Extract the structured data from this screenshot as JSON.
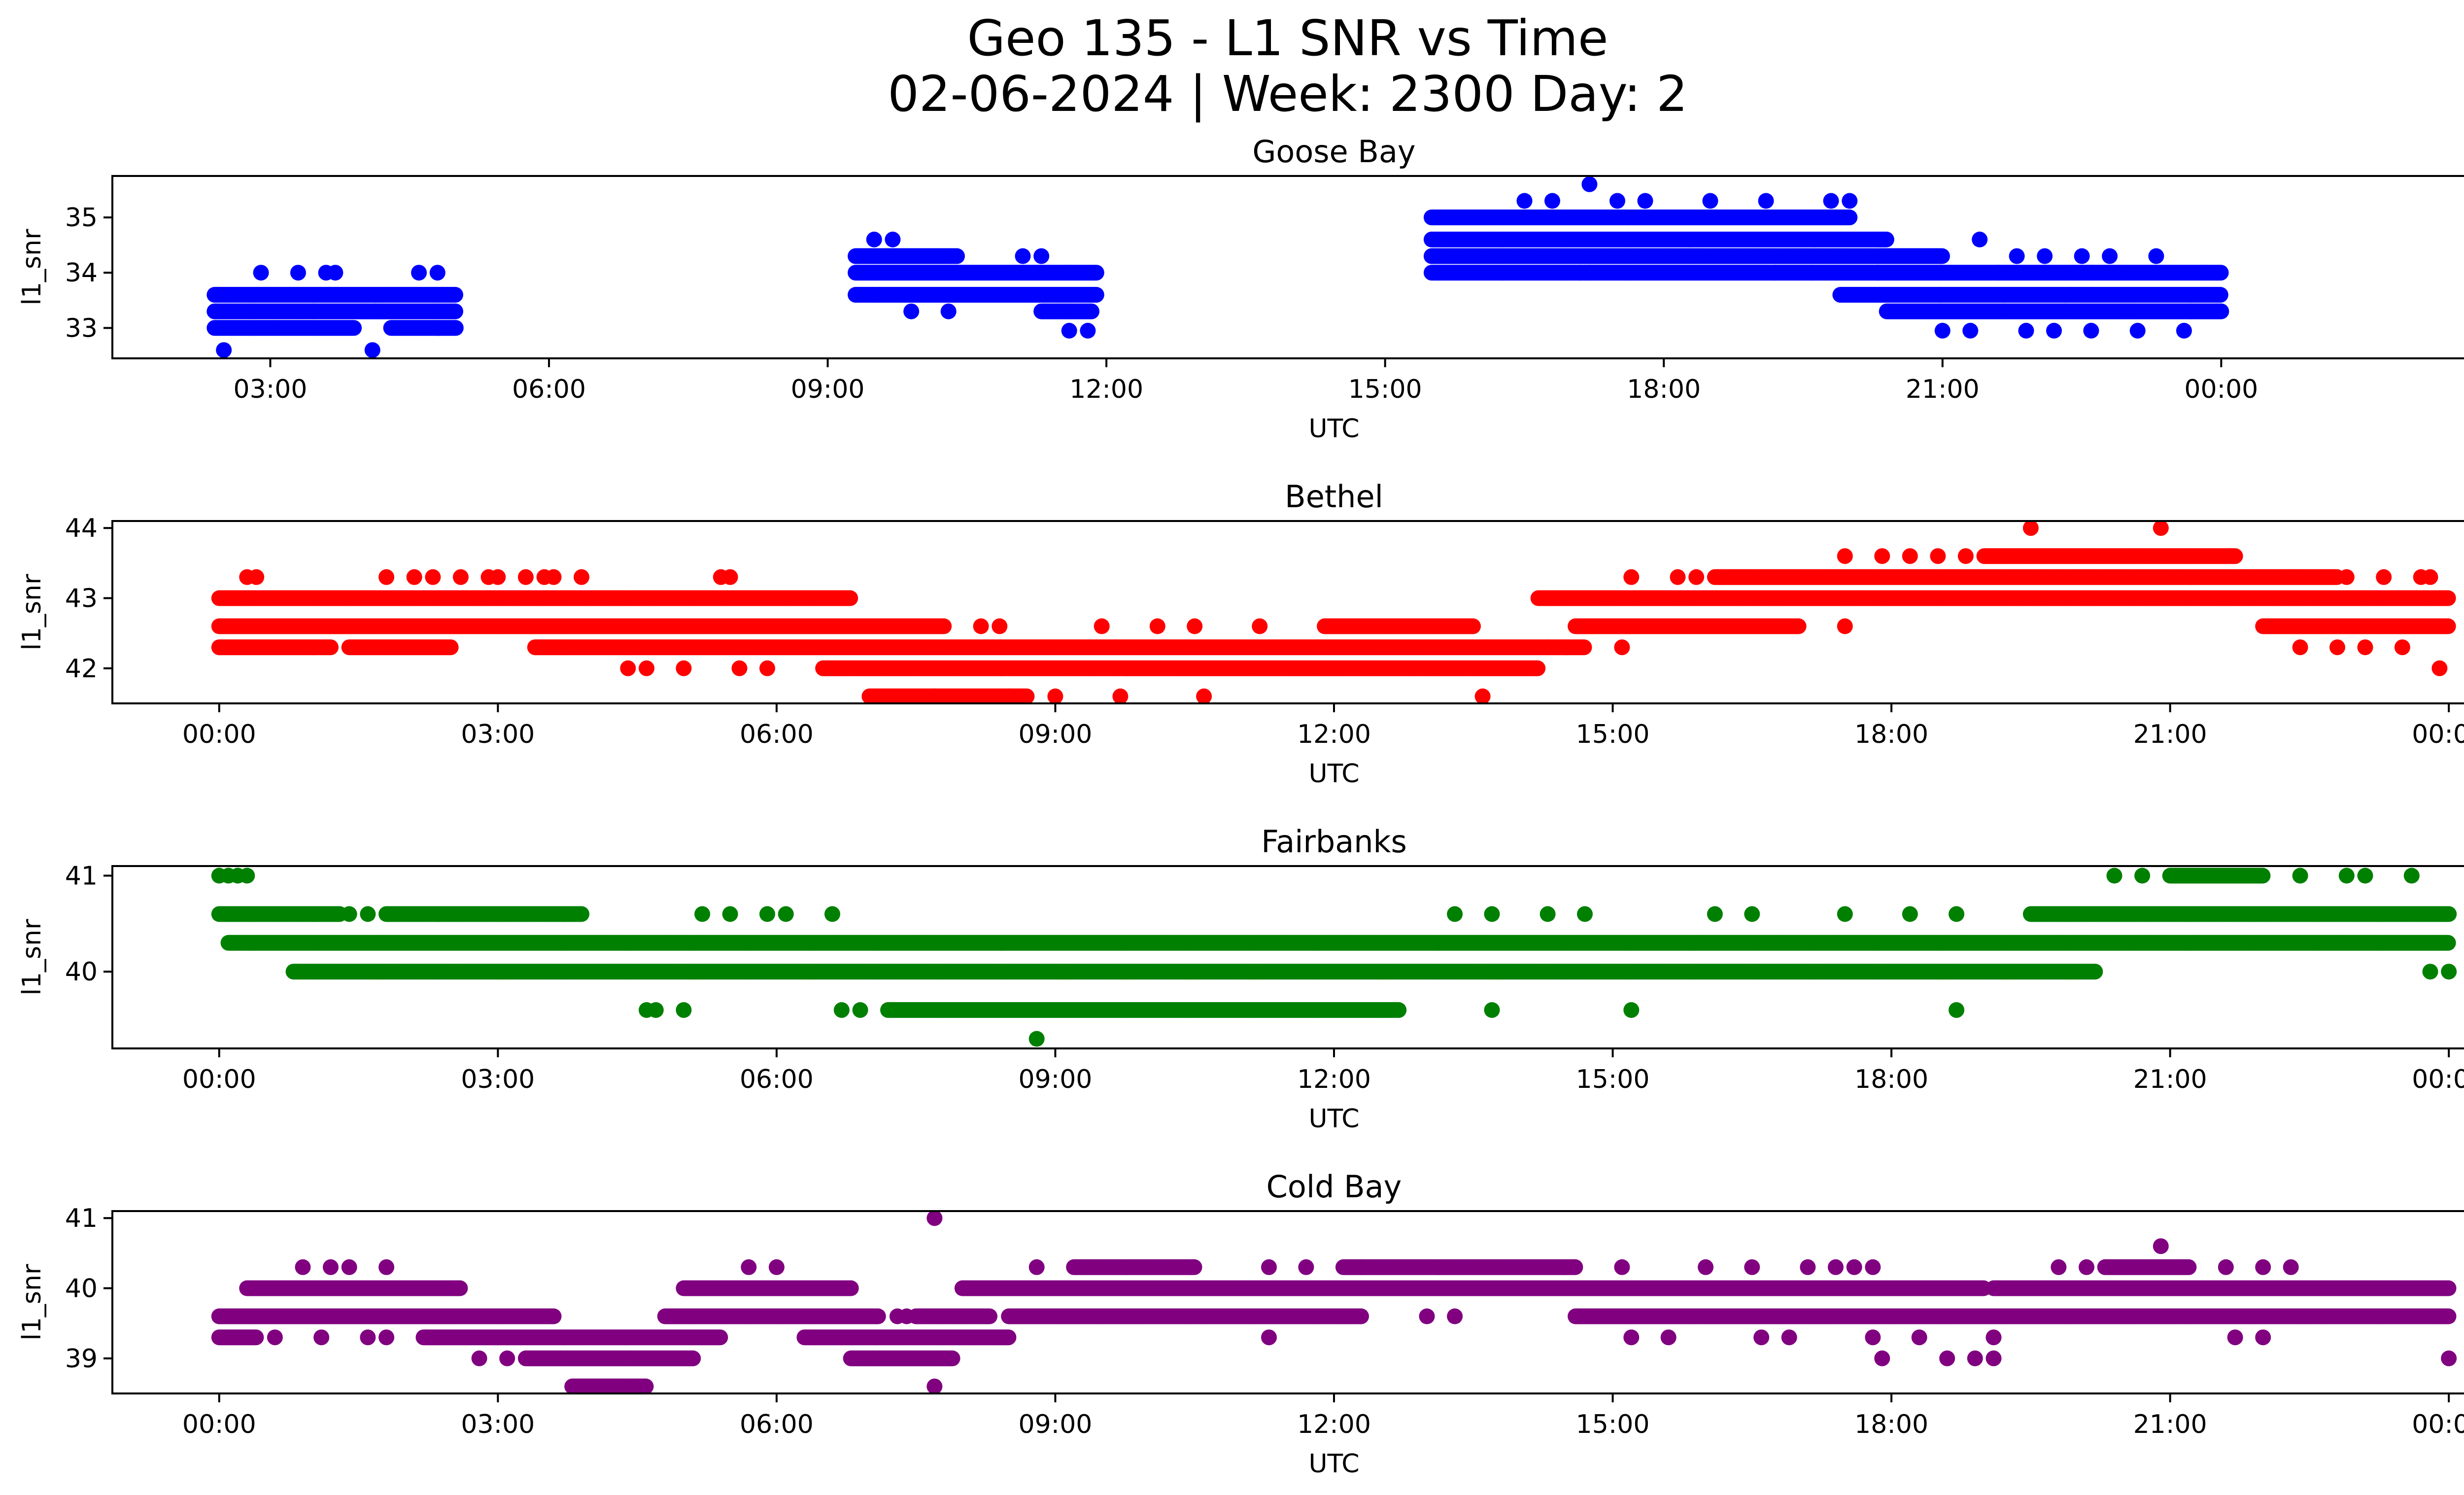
{
  "figure": {
    "title_line1": "Geo 135 - L1 SNR vs Time",
    "title_line2": "02-06-2024 | Week: 2300 Day: 2"
  },
  "chart_data": [
    {
      "type": "scatter",
      "title": "Goose Bay",
      "xlabel": "UTC",
      "ylabel": "l1_snr",
      "color": "#0000ff",
      "xlim_hours": [
        1.3,
        27.6
      ],
      "ylim": [
        32.45,
        35.75
      ],
      "yticks": [
        33,
        34,
        35
      ],
      "xticks": [
        {
          "hour": 3,
          "label": "03:00"
        },
        {
          "hour": 6,
          "label": "06:00"
        },
        {
          "hour": 9,
          "label": "09:00"
        },
        {
          "hour": 12,
          "label": "12:00"
        },
        {
          "hour": 15,
          "label": "15:00"
        },
        {
          "hour": 18,
          "label": "18:00"
        },
        {
          "hour": 21,
          "label": "21:00"
        },
        {
          "hour": 24,
          "label": "00:00"
        }
      ],
      "bands": [
        {
          "y": 33.0,
          "x": [
            [
              2.4,
              3.9
            ],
            [
              4.3,
              5.0
            ]
          ]
        },
        {
          "y": 33.3,
          "x": [
            [
              2.4,
              5.0
            ],
            [
              11.3,
              11.85
            ],
            [
              20.4,
              24.0
            ]
          ]
        },
        {
          "y": 33.6,
          "x": [
            [
              2.4,
              5.0
            ],
            [
              9.3,
              11.9
            ],
            [
              19.9,
              24.0
            ]
          ]
        },
        {
          "y": 34.0,
          "x": [
            [
              9.3,
              11.9
            ],
            [
              15.5,
              24.0
            ]
          ]
        },
        {
          "y": 34.3,
          "x": [
            [
              9.3,
              10.4
            ],
            [
              15.5,
              21.0
            ]
          ]
        },
        {
          "y": 34.6,
          "x": [
            [
              15.5,
              20.4
            ]
          ]
        },
        {
          "y": 35.0,
          "x": [
            [
              15.5,
              20.0
            ]
          ]
        }
      ],
      "points": [
        [
          2.9,
          34.0
        ],
        [
          3.3,
          34.0
        ],
        [
          3.6,
          34.0
        ],
        [
          3.7,
          34.0
        ],
        [
          4.6,
          34.0
        ],
        [
          4.8,
          34.0
        ],
        [
          2.5,
          32.6
        ],
        [
          4.1,
          32.6
        ],
        [
          3.1,
          33.0
        ],
        [
          4.8,
          33.0
        ],
        [
          9.5,
          34.6
        ],
        [
          9.7,
          34.6
        ],
        [
          11.1,
          34.3
        ],
        [
          11.3,
          34.3
        ],
        [
          9.9,
          33.3
        ],
        [
          10.3,
          33.3
        ],
        [
          11.6,
          32.95
        ],
        [
          11.8,
          32.95
        ],
        [
          16.5,
          35.3
        ],
        [
          16.8,
          35.3
        ],
        [
          17.2,
          35.6
        ],
        [
          17.5,
          35.3
        ],
        [
          17.8,
          35.3
        ],
        [
          18.5,
          35.3
        ],
        [
          19.1,
          35.3
        ],
        [
          19.8,
          35.3
        ],
        [
          20.0,
          35.3
        ],
        [
          17.1,
          34.0
        ],
        [
          17.2,
          34.0
        ],
        [
          19.2,
          34.0
        ],
        [
          19.6,
          34.0
        ],
        [
          20.3,
          34.0
        ],
        [
          21.8,
          34.3
        ],
        [
          22.1,
          34.3
        ],
        [
          22.5,
          34.3
        ],
        [
          22.8,
          34.3
        ],
        [
          23.3,
          34.3
        ],
        [
          21.4,
          34.6
        ],
        [
          21.6,
          34.0
        ],
        [
          22.6,
          34.0
        ],
        [
          23.8,
          34.0
        ],
        [
          21.0,
          32.95
        ],
        [
          21.3,
          32.95
        ],
        [
          21.9,
          32.95
        ],
        [
          22.2,
          32.95
        ],
        [
          22.6,
          32.95
        ],
        [
          23.1,
          32.95
        ],
        [
          23.6,
          32.95
        ]
      ]
    },
    {
      "type": "scatter",
      "title": "Bethel",
      "xlabel": "UTC",
      "ylabel": "l1_snr",
      "color": "#ff0000",
      "xlim_hours": [
        -1.15,
        25.15
      ],
      "ylim": [
        41.5,
        44.1
      ],
      "yticks": [
        42,
        43,
        44
      ],
      "xticks": [
        {
          "hour": 0,
          "label": "00:00"
        },
        {
          "hour": 3,
          "label": "03:00"
        },
        {
          "hour": 6,
          "label": "06:00"
        },
        {
          "hour": 9,
          "label": "09:00"
        },
        {
          "hour": 12,
          "label": "12:00"
        },
        {
          "hour": 15,
          "label": "15:00"
        },
        {
          "hour": 18,
          "label": "18:00"
        },
        {
          "hour": 21,
          "label": "21:00"
        },
        {
          "hour": 24,
          "label": "00:00"
        }
      ],
      "bands": [
        {
          "y": 41.6,
          "x": [
            [
              7.0,
              8.7
            ]
          ]
        },
        {
          "y": 42.0,
          "x": [
            [
              6.5,
              14.2
            ]
          ]
        },
        {
          "y": 42.3,
          "x": [
            [
              0.0,
              1.2
            ],
            [
              1.4,
              2.5
            ],
            [
              3.4,
              14.7
            ]
          ]
        },
        {
          "y": 42.6,
          "x": [
            [
              0.0,
              7.8
            ],
            [
              11.9,
              13.5
            ],
            [
              14.6,
              17.0
            ],
            [
              22.0,
              24.0
            ]
          ]
        },
        {
          "y": 43.0,
          "x": [
            [
              0.0,
              6.8
            ],
            [
              14.2,
              24.0
            ]
          ]
        },
        {
          "y": 43.3,
          "x": [
            [
              16.1,
              22.8
            ]
          ]
        },
        {
          "y": 43.6,
          "x": [
            [
              19.0,
              21.7
            ]
          ]
        }
      ],
      "points": [
        [
          0.3,
          43.3
        ],
        [
          0.4,
          43.3
        ],
        [
          1.8,
          43.3
        ],
        [
          2.1,
          43.3
        ],
        [
          2.3,
          43.3
        ],
        [
          2.6,
          43.3
        ],
        [
          2.9,
          43.3
        ],
        [
          3.0,
          43.3
        ],
        [
          3.3,
          43.3
        ],
        [
          3.5,
          43.3
        ],
        [
          3.6,
          43.3
        ],
        [
          3.9,
          43.3
        ],
        [
          5.4,
          43.3
        ],
        [
          5.5,
          43.3
        ],
        [
          4.4,
          42.0
        ],
        [
          4.6,
          42.0
        ],
        [
          5.0,
          42.0
        ],
        [
          5.6,
          42.0
        ],
        [
          5.9,
          42.0
        ],
        [
          7.7,
          41.6
        ],
        [
          8.5,
          41.6
        ],
        [
          9.0,
          41.6
        ],
        [
          9.7,
          41.6
        ],
        [
          10.6,
          41.6
        ],
        [
          13.6,
          41.6
        ],
        [
          8.2,
          42.6
        ],
        [
          8.4,
          42.6
        ],
        [
          9.5,
          42.6
        ],
        [
          10.1,
          42.6
        ],
        [
          10.5,
          42.6
        ],
        [
          11.2,
          42.6
        ],
        [
          14.3,
          42.3
        ],
        [
          14.5,
          42.3
        ],
        [
          15.1,
          42.3
        ],
        [
          15.2,
          43.3
        ],
        [
          15.7,
          43.3
        ],
        [
          15.9,
          43.3
        ],
        [
          17.5,
          42.6
        ],
        [
          17.5,
          43.6
        ],
        [
          17.9,
          43.6
        ],
        [
          18.2,
          43.6
        ],
        [
          18.5,
          43.6
        ],
        [
          18.8,
          43.6
        ],
        [
          19.5,
          44.0
        ],
        [
          20.9,
          44.0
        ],
        [
          22.3,
          43.3
        ],
        [
          22.9,
          43.3
        ],
        [
          23.3,
          43.3
        ],
        [
          23.7,
          43.3
        ],
        [
          23.8,
          43.3
        ],
        [
          22.4,
          42.3
        ],
        [
          22.8,
          42.3
        ],
        [
          23.1,
          42.3
        ],
        [
          23.5,
          42.3
        ],
        [
          23.9,
          42.0
        ]
      ]
    },
    {
      "type": "scatter",
      "title": "Fairbanks",
      "xlabel": "UTC",
      "ylabel": "l1_snr",
      "color": "#008000",
      "xlim_hours": [
        -1.15,
        25.15
      ],
      "ylim": [
        39.2,
        41.1
      ],
      "yticks": [
        40,
        41
      ],
      "xticks": [
        {
          "hour": 0,
          "label": "00:00"
        },
        {
          "hour": 3,
          "label": "03:00"
        },
        {
          "hour": 6,
          "label": "06:00"
        },
        {
          "hour": 9,
          "label": "09:00"
        },
        {
          "hour": 12,
          "label": "12:00"
        },
        {
          "hour": 15,
          "label": "15:00"
        },
        {
          "hour": 18,
          "label": "18:00"
        },
        {
          "hour": 21,
          "label": "21:00"
        },
        {
          "hour": 24,
          "label": "00:00"
        }
      ],
      "bands": [
        {
          "y": 39.6,
          "x": [
            [
              7.2,
              12.7
            ]
          ]
        },
        {
          "y": 40.0,
          "x": [
            [
              0.8,
              20.2
            ]
          ]
        },
        {
          "y": 40.3,
          "x": [
            [
              0.1,
              24.0
            ]
          ]
        },
        {
          "y": 40.6,
          "x": [
            [
              0.0,
              1.3
            ],
            [
              1.8,
              3.9
            ],
            [
              19.5,
              24.0
            ]
          ]
        },
        {
          "y": 41.0,
          "x": [
            [
              21.0,
              22.0
            ]
          ]
        }
      ],
      "points": [
        [
          0.0,
          41.0
        ],
        [
          0.1,
          41.0
        ],
        [
          0.2,
          41.0
        ],
        [
          0.3,
          41.0
        ],
        [
          1.4,
          40.6
        ],
        [
          1.6,
          40.6
        ],
        [
          5.2,
          40.6
        ],
        [
          5.5,
          40.6
        ],
        [
          5.9,
          40.6
        ],
        [
          6.1,
          40.6
        ],
        [
          6.6,
          40.6
        ],
        [
          4.6,
          39.6
        ],
        [
          4.7,
          39.6
        ],
        [
          5.0,
          39.6
        ],
        [
          6.7,
          39.6
        ],
        [
          6.9,
          39.6
        ],
        [
          8.8,
          39.3
        ],
        [
          13.3,
          40.6
        ],
        [
          13.7,
          40.6
        ],
        [
          14.3,
          40.6
        ],
        [
          14.7,
          40.6
        ],
        [
          16.1,
          40.6
        ],
        [
          16.5,
          40.6
        ],
        [
          17.5,
          40.6
        ],
        [
          18.2,
          40.6
        ],
        [
          18.7,
          40.6
        ],
        [
          13.7,
          39.6
        ],
        [
          15.2,
          39.6
        ],
        [
          18.7,
          39.6
        ],
        [
          20.4,
          41.0
        ],
        [
          20.7,
          41.0
        ],
        [
          22.4,
          41.0
        ],
        [
          22.9,
          41.0
        ],
        [
          23.1,
          41.0
        ],
        [
          23.6,
          41.0
        ],
        [
          23.8,
          40.0
        ],
        [
          24.0,
          40.0
        ]
      ]
    },
    {
      "type": "scatter",
      "title": "Cold Bay",
      "xlabel": "UTC",
      "ylabel": "l1_snr",
      "color": "#800080",
      "xlim_hours": [
        -1.15,
        25.15
      ],
      "ylim": [
        38.5,
        41.1
      ],
      "yticks": [
        39,
        40,
        41
      ],
      "xticks": [
        {
          "hour": 0,
          "label": "00:00"
        },
        {
          "hour": 3,
          "label": "03:00"
        },
        {
          "hour": 6,
          "label": "06:00"
        },
        {
          "hour": 9,
          "label": "09:00"
        },
        {
          "hour": 12,
          "label": "12:00"
        },
        {
          "hour": 15,
          "label": "15:00"
        },
        {
          "hour": 18,
          "label": "18:00"
        },
        {
          "hour": 21,
          "label": "21:00"
        },
        {
          "hour": 24,
          "label": "00:00"
        }
      ],
      "bands": [
        {
          "y": 38.6,
          "x": [
            [
              3.8,
              4.6
            ]
          ]
        },
        {
          "y": 39.0,
          "x": [
            [
              3.3,
              5.1
            ],
            [
              6.8,
              7.9
            ]
          ]
        },
        {
          "y": 39.3,
          "x": [
            [
              0.0,
              0.4
            ],
            [
              2.2,
              5.4
            ],
            [
              6.3,
              8.5
            ]
          ]
        },
        {
          "y": 39.6,
          "x": [
            [
              0.0,
              3.6
            ],
            [
              4.8,
              7.1
            ],
            [
              7.5,
              8.3
            ],
            [
              8.5,
              12.3
            ],
            [
              14.6,
              24.0
            ]
          ]
        },
        {
          "y": 40.0,
          "x": [
            [
              0.3,
              2.6
            ],
            [
              5.0,
              6.8
            ],
            [
              8.0,
              19.0
            ],
            [
              19.1,
              24.0
            ]
          ]
        },
        {
          "y": 40.3,
          "x": [
            [
              9.2,
              10.5
            ],
            [
              12.1,
              14.6
            ],
            [
              20.3,
              21.2
            ]
          ]
        }
      ],
      "points": [
        [
          0.9,
          40.3
        ],
        [
          1.2,
          40.3
        ],
        [
          1.4,
          40.3
        ],
        [
          1.8,
          40.3
        ],
        [
          0.6,
          39.3
        ],
        [
          1.1,
          39.3
        ],
        [
          1.6,
          39.3
        ],
        [
          1.8,
          39.3
        ],
        [
          2.8,
          39.0
        ],
        [
          3.1,
          39.0
        ],
        [
          5.7,
          40.3
        ],
        [
          6.0,
          40.3
        ],
        [
          7.7,
          41.0
        ],
        [
          7.7,
          38.6
        ],
        [
          7.3,
          39.6
        ],
        [
          7.4,
          39.6
        ],
        [
          8.8,
          40.3
        ],
        [
          9.5,
          39.6
        ],
        [
          9.8,
          39.6
        ],
        [
          11.3,
          39.3
        ],
        [
          11.3,
          40.3
        ],
        [
          11.7,
          40.3
        ],
        [
          12.3,
          40.3
        ],
        [
          13.0,
          39.6
        ],
        [
          13.3,
          39.6
        ],
        [
          15.1,
          40.3
        ],
        [
          16.0,
          40.3
        ],
        [
          16.5,
          40.3
        ],
        [
          15.2,
          39.3
        ],
        [
          15.6,
          39.3
        ],
        [
          16.6,
          39.3
        ],
        [
          16.9,
          39.3
        ],
        [
          17.1,
          40.3
        ],
        [
          17.4,
          40.3
        ],
        [
          17.6,
          40.3
        ],
        [
          17.8,
          40.3
        ],
        [
          17.9,
          39.0
        ],
        [
          18.6,
          39.0
        ],
        [
          18.9,
          39.0
        ],
        [
          19.1,
          39.0
        ],
        [
          17.8,
          39.3
        ],
        [
          18.3,
          39.3
        ],
        [
          19.1,
          39.3
        ],
        [
          19.8,
          40.3
        ],
        [
          20.1,
          40.3
        ],
        [
          20.9,
          40.6
        ],
        [
          21.2,
          39.6
        ],
        [
          21.6,
          40.3
        ],
        [
          22.0,
          40.3
        ],
        [
          22.3,
          40.3
        ],
        [
          21.7,
          39.3
        ],
        [
          22.0,
          39.3
        ],
        [
          24.0,
          39.0
        ]
      ]
    }
  ]
}
